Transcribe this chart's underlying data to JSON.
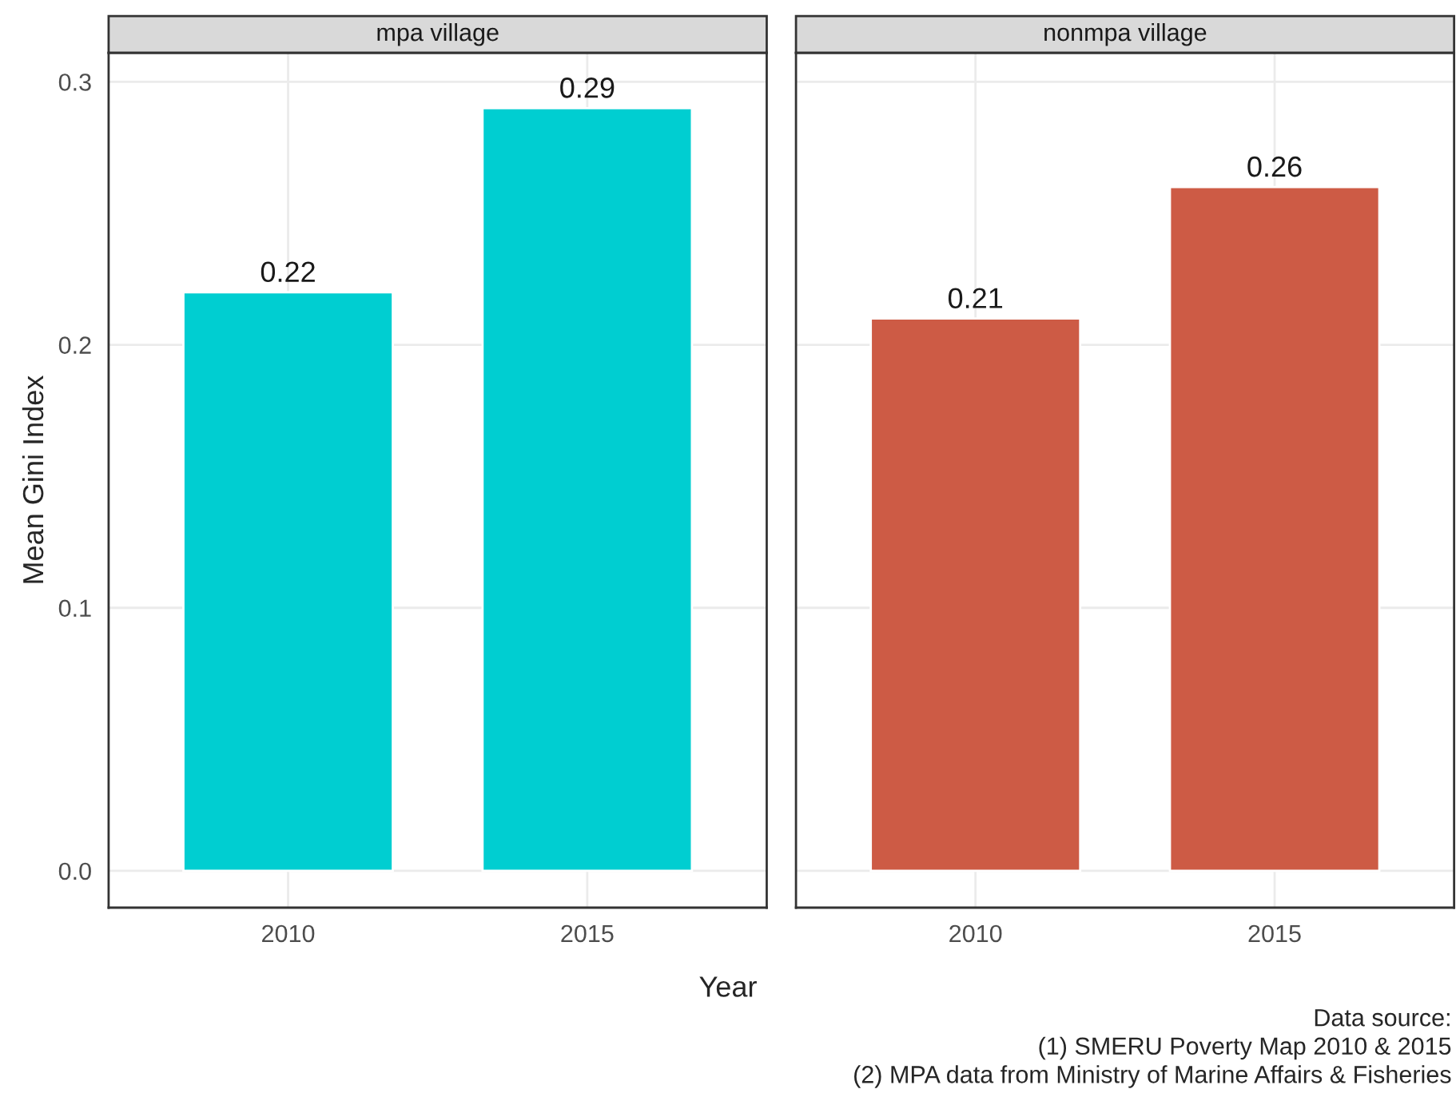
{
  "chart_data": [
    {
      "type": "bar",
      "title": "mpa village",
      "categories": [
        "2010",
        "2015"
      ],
      "values": [
        0.22,
        0.29
      ],
      "color": "#00ced1",
      "data_labels": true,
      "ylim": [
        -0.014,
        0.311
      ],
      "yticks": [
        {
          "value": 0,
          "label": "0.0"
        },
        {
          "value": 0.1,
          "label": "0.1"
        },
        {
          "value": 0.2,
          "label": "0.2"
        },
        {
          "value": 0.3,
          "label": "0.3"
        }
      ],
      "xlabel": "Year",
      "ylabel": "Mean Gini Index",
      "grid": true,
      "annotations": [
        "Data source:",
        "(1) SMERU Poverty Map 2010 & 2015",
        "(2) MPA data from Ministry of Marine Affairs & Fisheries"
      ]
    },
    {
      "type": "bar",
      "title": "nonmpa village",
      "categories": [
        "2010",
        "2015"
      ],
      "values": [
        0.21,
        0.26
      ],
      "color": "#cd5b45",
      "data_labels": true,
      "ylim": [
        -0.014,
        0.311
      ],
      "yticks": [
        {
          "value": 0,
          "label": null
        },
        {
          "value": 0.1,
          "label": null
        },
        {
          "value": 0.2,
          "label": null
        },
        {
          "value": 0.3,
          "label": null
        }
      ],
      "grid": true,
      "tick_labels": "x"
    }
  ]
}
